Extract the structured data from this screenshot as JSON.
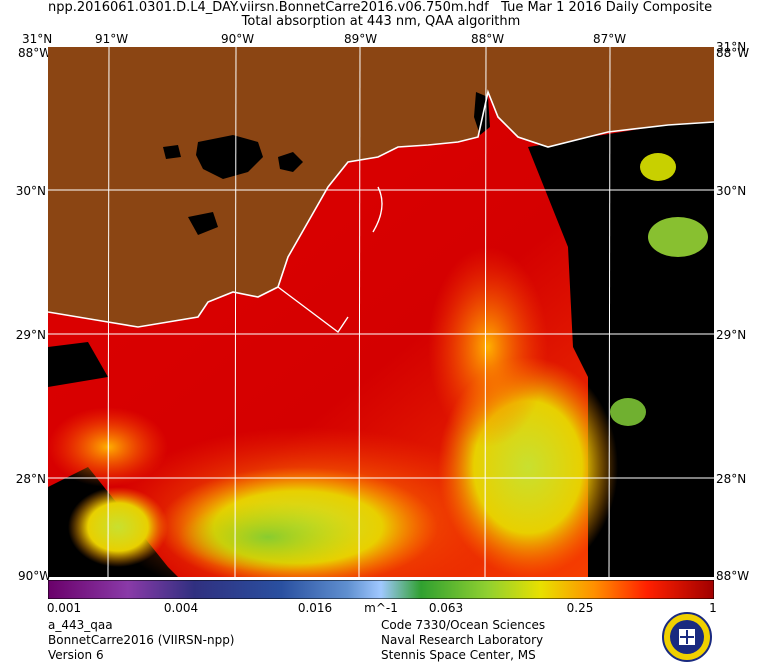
{
  "header": {
    "file": "npp.2016061.0301.D.L4_DAY.viirsn.BonnetCarre2016.v06.750m.hdf",
    "date": "Tue Mar  1 2016 Daily Composite",
    "product": "Total absorption at 443 nm, QAA algorithm"
  },
  "axes": {
    "top_lon": [
      "31°N",
      "91°W",
      "90°W",
      "89°W",
      "88°W",
      "87°W",
      "31°N"
    ],
    "corner_tl": "88°W",
    "corner_tr": "88°W",
    "corner_bl": "90°W",
    "corner_br": "88°W",
    "lat_left": [
      "30°N",
      "29°N",
      "28°N"
    ],
    "lat_right": [
      "30°N",
      "29°N",
      "28°N"
    ]
  },
  "colorbar": {
    "ticks": [
      "0.001",
      "0.004",
      "0.016",
      "m^-1",
      "0.063",
      "0.25",
      "1"
    ]
  },
  "footer": {
    "left": [
      "a_443_qaa",
      "BonnetCarre2016 (VIIRSN-npp)",
      "Version 6"
    ],
    "right": [
      "Code 7330/Ocean Sciences",
      "Naval Research Laboratory",
      "Stennis Space Center, MS"
    ]
  },
  "colors": {
    "land": "#8B4513",
    "nodata": "#000000",
    "grid": "#ffffff",
    "water_high": "#d00000",
    "water_mid": "#ff6000",
    "water_low": "#c8e000"
  },
  "seal_icon": "navy-seal-icon"
}
